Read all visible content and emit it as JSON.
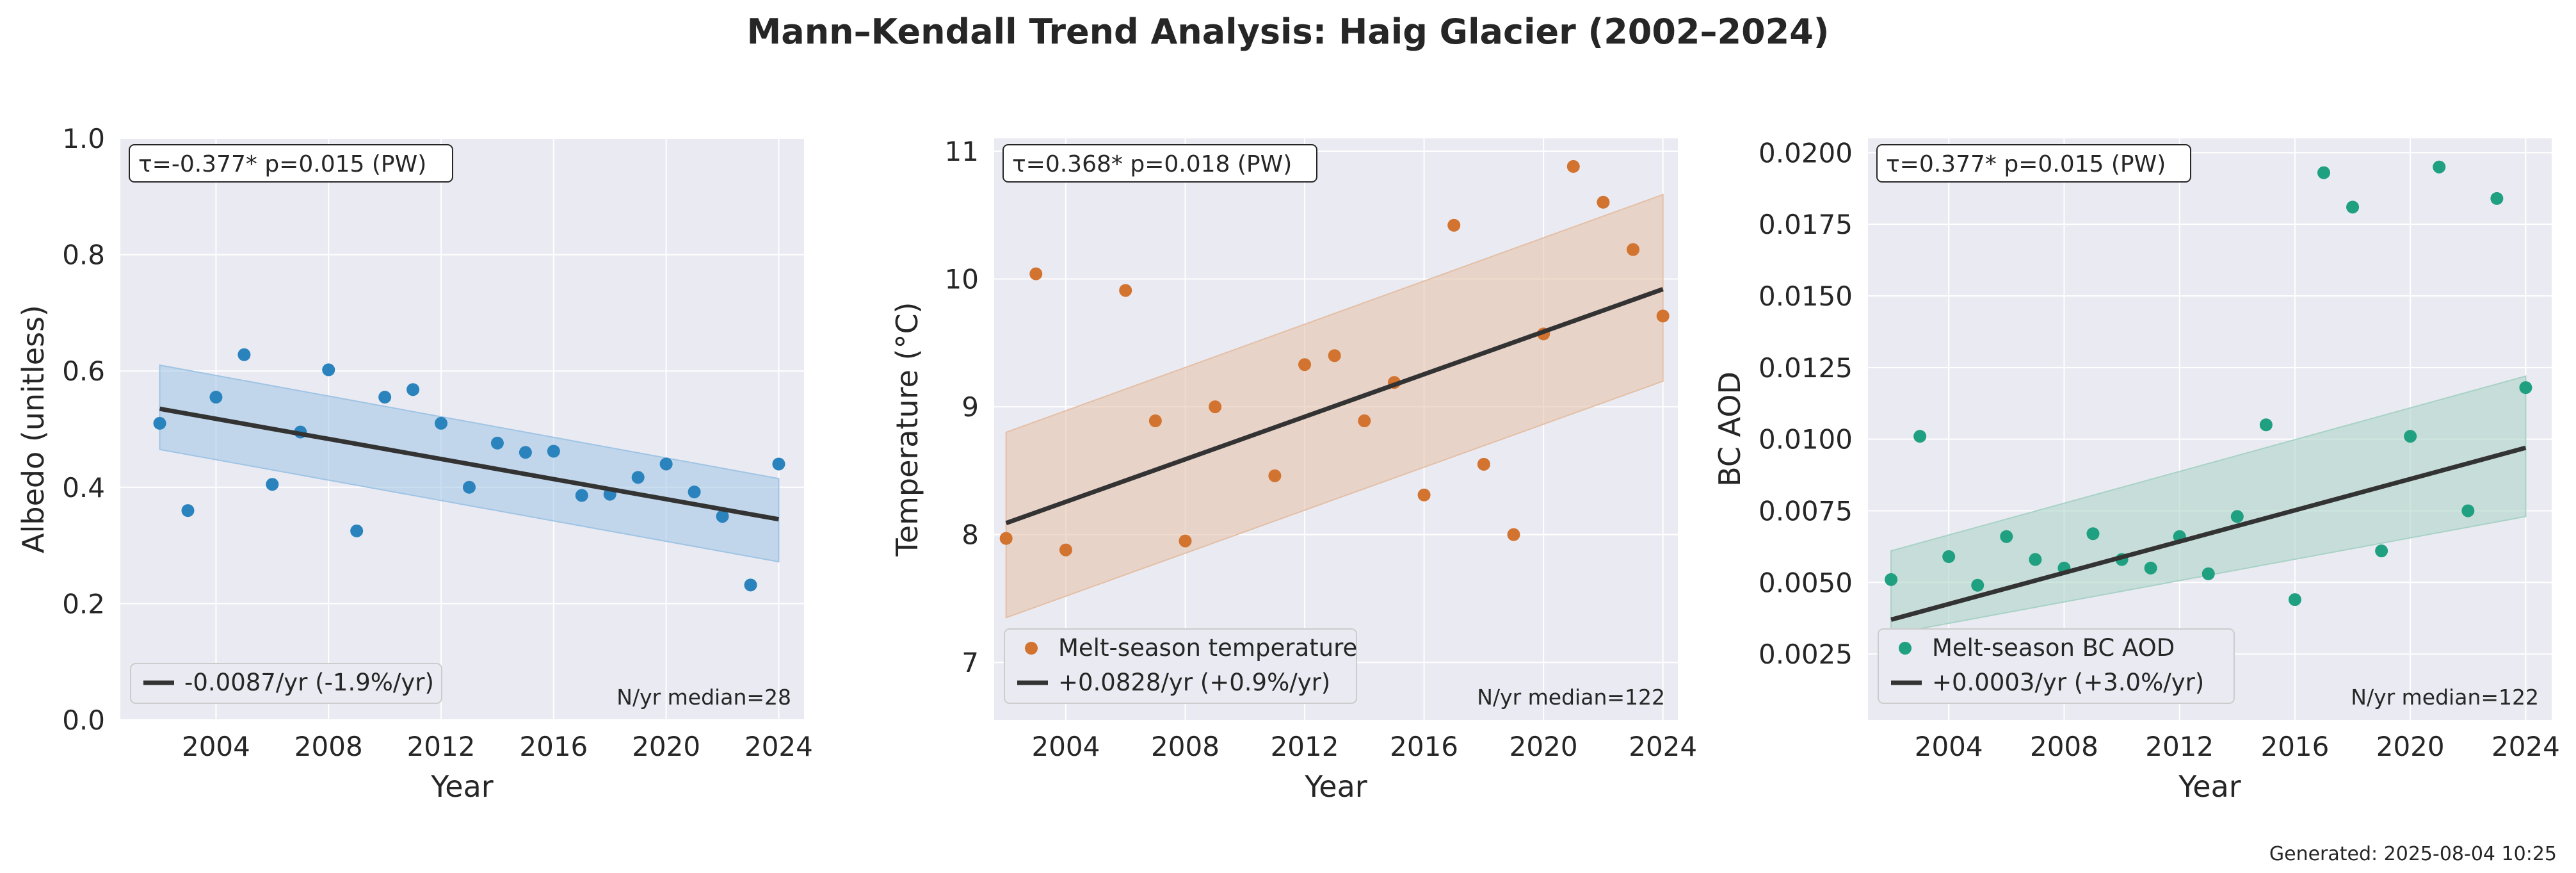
{
  "figure": {
    "title": "Mann–Kendall Trend Analysis: Haig Glacier (2002–2024)",
    "footer": "Generated: 2025-08-04 10:25"
  },
  "chart_data": [
    {
      "type": "scatter",
      "xlabel": "Year",
      "ylabel": "Albedo (unitless)",
      "xlim": [
        2000.6,
        2024.9
      ],
      "ylim": [
        0.0,
        1.0
      ],
      "xticks": [
        2004,
        2008,
        2012,
        2016,
        2020,
        2024
      ],
      "yticks": [
        0.0,
        0.2,
        0.4,
        0.6,
        0.8,
        1.0
      ],
      "ytick_labels": [
        "0.0",
        "0.2",
        "0.4",
        "0.6",
        "0.8",
        "1.0"
      ],
      "grid": true,
      "legend_position": "lower-left",
      "color": "#2a83bd",
      "band_color": "#9fc4e4",
      "series": [
        {
          "x": [
            2002,
            2003,
            2004,
            2005,
            2006,
            2007,
            2008,
            2009,
            2010,
            2011,
            2012,
            2013,
            2014,
            2015,
            2016,
            2017,
            2018,
            2019,
            2020,
            2021,
            2022,
            2023,
            2024
          ],
          "y": [
            0.51,
            0.36,
            0.555,
            0.628,
            0.405,
            0.495,
            0.602,
            0.325,
            0.555,
            0.568,
            0.51,
            0.4,
            0.476,
            0.46,
            0.462,
            0.386,
            0.388,
            0.417,
            0.44,
            0.392,
            0.35,
            0.232,
            0.44
          ]
        }
      ],
      "trend": {
        "x": [
          2002,
          2024
        ],
        "y": [
          0.535,
          0.345
        ],
        "label": "-0.0087/yr (-1.9%/yr)"
      },
      "confidence_band": {
        "x": [
          2002,
          2024
        ],
        "upper": [
          0.61,
          0.415
        ],
        "lower": [
          0.465,
          0.272
        ]
      },
      "annotation": "τ=-0.377*  p=0.015 (PW)",
      "footnote": "N/yr median=28"
    },
    {
      "type": "scatter",
      "xlabel": "Year",
      "ylabel": "Temperature (°C)",
      "xlim": [
        2001.6,
        2024.5
      ],
      "ylim": [
        6.55,
        11.1
      ],
      "xticks": [
        2004,
        2008,
        2012,
        2016,
        2020,
        2024
      ],
      "yticks": [
        7,
        8,
        9,
        10,
        11
      ],
      "ytick_labels": [
        "7",
        "8",
        "9",
        "10",
        "11"
      ],
      "grid": true,
      "legend_position": "lower-left",
      "color": "#d2732f",
      "band_color": "#e3bfa6",
      "series": [
        {
          "name": "Melt-season temperature",
          "x": [
            2002,
            2003,
            2004,
            2005,
            2006,
            2007,
            2008,
            2009,
            2010,
            2011,
            2012,
            2013,
            2014,
            2015,
            2016,
            2017,
            2018,
            2019,
            2020,
            2021,
            2022,
            2023,
            2024
          ],
          "y": [
            7.97,
            10.04,
            7.88,
            7.1,
            9.91,
            8.89,
            7.95,
            9.0,
            6.73,
            8.46,
            9.33,
            9.4,
            8.89,
            9.19,
            8.31,
            10.42,
            8.55,
            8.0,
            9.57,
            10.88,
            10.6,
            10.23,
            9.71
          ]
        }
      ],
      "trend": {
        "x": [
          2002,
          2024
        ],
        "y": [
          8.09,
          9.92
        ],
        "label": "+0.0828/yr (+0.9%/yr)"
      },
      "confidence_band": {
        "x": [
          2002,
          2024
        ],
        "upper": [
          8.8,
          10.66
        ],
        "lower": [
          7.35,
          9.2
        ]
      },
      "annotation": "τ=0.368*  p=0.018 (PW)",
      "footnote": "N/yr median=122"
    },
    {
      "type": "scatter",
      "xlabel": "Year",
      "ylabel": "BC AOD",
      "xlim": [
        2001.2,
        2024.9
      ],
      "ylim": [
        0.0002,
        0.0205
      ],
      "xticks": [
        2004,
        2008,
        2012,
        2016,
        2020,
        2024
      ],
      "yticks": [
        0.0025,
        0.005,
        0.0075,
        0.01,
        0.0125,
        0.015,
        0.0175,
        0.02
      ],
      "ytick_labels": [
        "0.0025",
        "0.0050",
        "0.0075",
        "0.0100",
        "0.0125",
        "0.0150",
        "0.0175",
        "0.0200"
      ],
      "grid": true,
      "legend_position": "lower-left",
      "color": "#1fa080",
      "band_color": "#a8d2c5",
      "series": [
        {
          "name": "Melt-season BC AOD",
          "x": [
            2002,
            2003,
            2004,
            2005,
            2006,
            2007,
            2008,
            2009,
            2010,
            2011,
            2012,
            2013,
            2014,
            2015,
            2016,
            2017,
            2018,
            2019,
            2020,
            2021,
            2022,
            2023,
            2024
          ],
          "y": [
            0.0051,
            0.0101,
            0.0059,
            0.0049,
            0.0066,
            0.0058,
            0.0055,
            0.0067,
            0.0058,
            0.0055,
            0.0066,
            0.0053,
            0.0073,
            0.0105,
            0.0044,
            0.0193,
            0.0181,
            0.0061,
            0.0101,
            0.0195,
            0.0075,
            0.0184,
            0.0118
          ]
        }
      ],
      "trend": {
        "x": [
          2002,
          2024
        ],
        "y": [
          0.0037,
          0.0097
        ],
        "label": "+0.0003/yr (+3.0%/yr)"
      },
      "confidence_band": {
        "x": [
          2002,
          2024
        ],
        "upper": [
          0.0061,
          0.0122
        ],
        "lower": [
          0.0032,
          0.0073
        ]
      },
      "annotation": "τ=0.377*  p=0.015 (PW)",
      "footnote": "N/yr median=122"
    }
  ]
}
